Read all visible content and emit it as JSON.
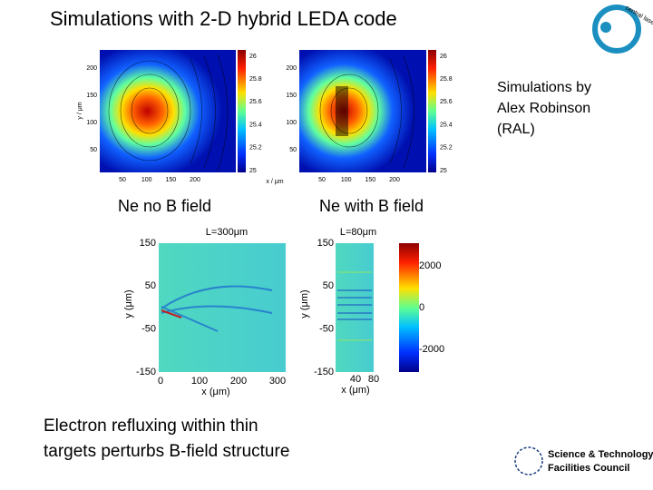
{
  "header": {
    "title": "Simulations with 2-D hybrid LEDA code"
  },
  "credit": [
    "Simulations by",
    "Alex Robinson",
    "(RAL)"
  ],
  "top_plots": {
    "y_label": "y / μm",
    "x_label": "x / μm",
    "left": {
      "yticks": [
        "200",
        "150",
        "100",
        "50"
      ],
      "xticks": [
        "50",
        "100",
        "150",
        "200"
      ],
      "colorbar_ticks": [
        "26",
        "25.8",
        "25.6",
        "25.4",
        "25.2",
        "25"
      ],
      "caption": "Ne no B field"
    },
    "right": {
      "yticks": [
        "200",
        "150",
        "100",
        "50"
      ],
      "xticks": [
        "50",
        "100",
        "150",
        "200"
      ],
      "colorbar_ticks": [
        "26",
        "25.8",
        "25.6",
        "25.4",
        "25.2",
        "25"
      ],
      "caption": "Ne with B field"
    }
  },
  "bottom_plots": {
    "left": {
      "title": "L=300μm",
      "y_label": "y (μm)",
      "x_label": "x (μm)",
      "yticks": [
        "150",
        "50",
        "-50",
        "-150"
      ],
      "xticks": [
        "0",
        "100",
        "200",
        "300"
      ]
    },
    "right": {
      "title": "L=80μm",
      "y_label": "y (μm)",
      "x_label": "x (μm)",
      "yticks": [
        "150",
        "50",
        "-50",
        "-150"
      ],
      "xticks": [
        "40",
        "80"
      ]
    },
    "colorbar_ticks": [
      "2000",
      "0",
      "-2000"
    ]
  },
  "conclusion": [
    "Electron refluxing within thin",
    "targets perturbs B-field structure"
  ],
  "logos": {
    "clf": "central laser facility",
    "stfc": [
      "Science & Technology",
      "Facilities Council"
    ]
  }
}
